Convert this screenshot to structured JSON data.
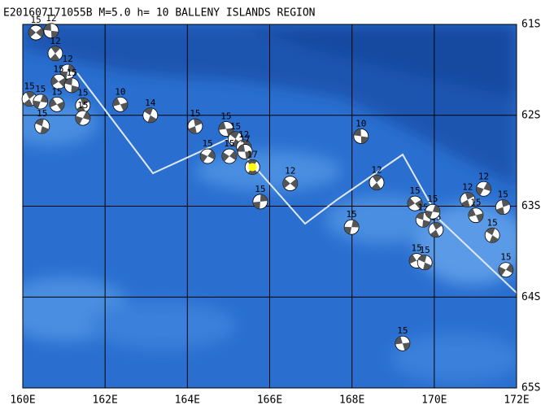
{
  "chart_data": {
    "type": "beachball-map",
    "title": "E201607171055B M=5.0 h= 10 BALLENY ISLANDS REGION",
    "xlim": [
      160,
      172
    ],
    "ylim": [
      -65,
      -61
    ],
    "xticks": [
      {
        "value": 160,
        "label": "160E"
      },
      {
        "value": 162,
        "label": "162E"
      },
      {
        "value": 164,
        "label": "164E"
      },
      {
        "value": 166,
        "label": "166E"
      },
      {
        "value": 168,
        "label": "168E"
      },
      {
        "value": 170,
        "label": "170E"
      },
      {
        "value": 172,
        "label": "172E"
      }
    ],
    "yticks": [
      {
        "value": -61,
        "label": "61S"
      },
      {
        "value": -62,
        "label": "62S"
      },
      {
        "value": -63,
        "label": "63S"
      },
      {
        "value": -64,
        "label": "64S"
      },
      {
        "value": -65,
        "label": "65S"
      }
    ],
    "grid": true,
    "x": [
      160.32,
      160.69,
      160.79,
      161.09,
      160.87,
      161.19,
      160.16,
      160.43,
      160.83,
      160.47,
      161.46,
      161.46,
      162.37,
      163.1,
      164.19,
      164.49,
      164.94,
      165.17,
      165.37,
      165.02,
      165.4,
      165.58,
      165.77,
      166.5,
      168.22,
      168.6,
      167.99,
      169.53,
      169.73,
      170.04,
      169.96,
      169.57,
      169.77,
      170.81,
      171.2,
      171.01,
      171.41,
      171.67,
      171.74,
      169.23
    ],
    "y": [
      -61.09,
      -61.07,
      -61.32,
      -61.52,
      -61.63,
      -61.67,
      -61.82,
      -61.85,
      -61.88,
      -62.12,
      -61.89,
      -62.03,
      -61.88,
      -62.0,
      -62.12,
      -62.45,
      -62.15,
      -62.26,
      -62.35,
      -62.45,
      -62.4,
      -62.57,
      -62.95,
      -62.75,
      -62.23,
      -62.74,
      -63.23,
      -62.97,
      -63.15,
      -63.26,
      -63.06,
      -63.6,
      -63.62,
      -62.93,
      -62.81,
      -63.1,
      -63.32,
      -63.01,
      -63.7,
      -64.51
    ],
    "depths": [
      15,
      12,
      12,
      12,
      15,
      15,
      15,
      15,
      15,
      15,
      15,
      15,
      10,
      14,
      15,
      15,
      15,
      15,
      12,
      15,
      17,
      17,
      15,
      12,
      10,
      12,
      15,
      15,
      15,
      15,
      15,
      15,
      15,
      12,
      12,
      15,
      15,
      15,
      15,
      15
    ],
    "main_color": "#ffff00"
  }
}
